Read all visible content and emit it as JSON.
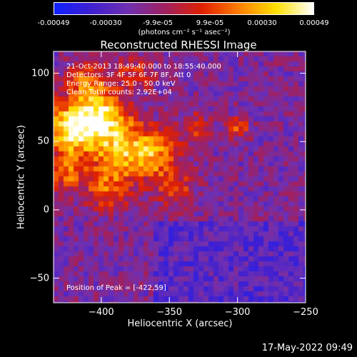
{
  "colorbar": {
    "tick_labels": [
      "-0.00049",
      "-0.00030",
      "-9.9e-05",
      "9.9e-05",
      "0.00030",
      "0.00049"
    ],
    "unit_label": "(photons cm⁻² s⁻¹ asec⁻²)",
    "range": [
      -0.00049,
      0.00049
    ],
    "colors": [
      "#1020ff",
      "#4020d0",
      "#7030b0",
      "#a02060",
      "#e02000",
      "#ff8000",
      "#ffe000",
      "#ffffff"
    ]
  },
  "chart_data": {
    "type": "heatmap",
    "title": "Reconstructed RHESSI Image",
    "xlabel": "Heliocentric X (arcsec)",
    "ylabel": "Heliocentric Y (arcsec)",
    "xlim": [
      -435,
      -250
    ],
    "ylim": [
      -68,
      116
    ],
    "x_ticks": [
      -400,
      -350,
      -300,
      -250
    ],
    "y_ticks": [
      -50,
      0,
      50,
      100
    ],
    "x_tick_labels": [
      "−400",
      "−350",
      "−300",
      "−250"
    ],
    "y_tick_labels": [
      "−50",
      "0",
      "50",
      "100"
    ],
    "peak": [
      -422,
      59
    ],
    "annotations": [
      "21-Oct-2013 18:49:40.000 to 18:55:40.000",
      "Detectors: 3F 4F 5F 6F 7F 8F, Att 0",
      "Energy Range: 25.0 - 50.0 keV",
      "Clean     Total counts: 2.92E+04",
      "Position of Peak = [-422,59]"
    ]
  },
  "timestamp": "17-May-2022 09:49"
}
